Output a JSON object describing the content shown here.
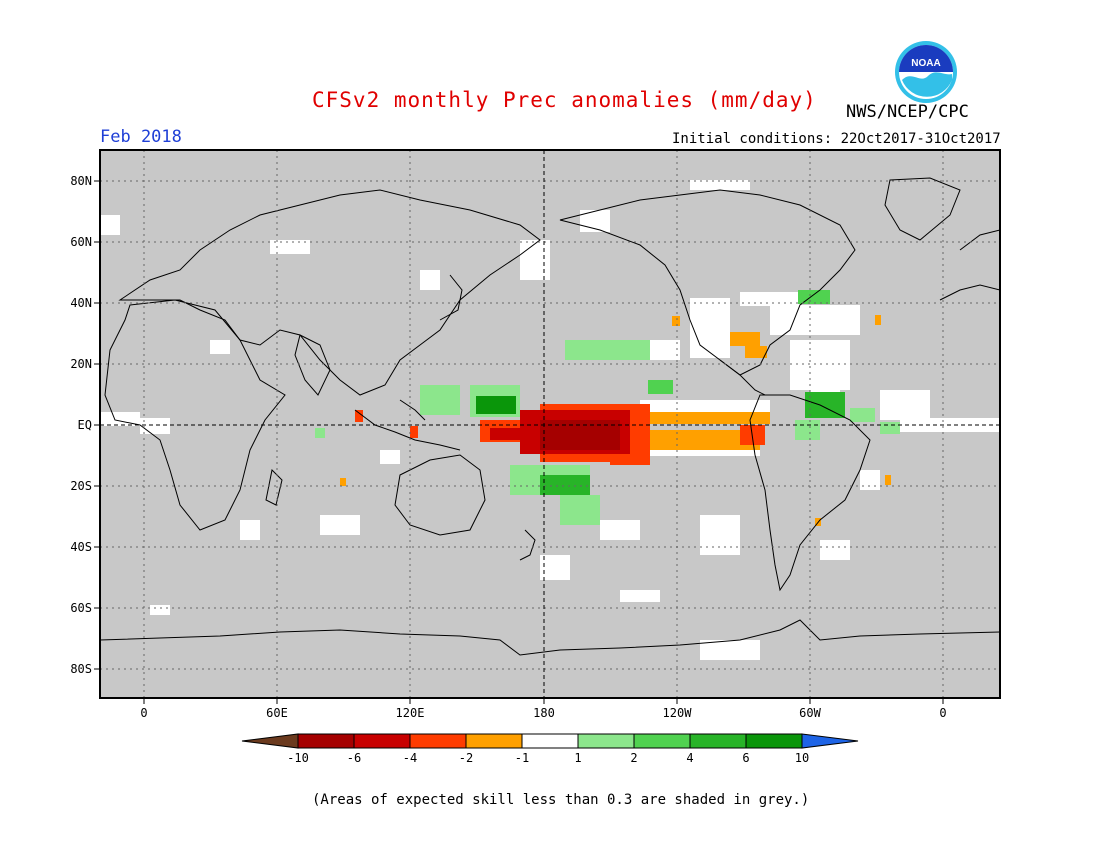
{
  "header": {
    "title": "CFSv2 monthly Prec anomalies (mm/day)",
    "org": "NWS/NCEP/CPC",
    "valid_month": "Feb 2018",
    "initial_conditions": "Initial conditions: 22Oct2017-31Oct2017"
  },
  "logo": {
    "text": "NOAA"
  },
  "map": {
    "lat_labels": [
      "80N",
      "60N",
      "40N",
      "20N",
      "EQ",
      "20S",
      "40S",
      "60S",
      "80S"
    ],
    "lon_labels": [
      "0",
      "60E",
      "120E",
      "180",
      "120W",
      "60W",
      "0"
    ],
    "background_color": "#c8c8c8"
  },
  "colorbar": {
    "labels": [
      "-10",
      "-6",
      "-4",
      "-2",
      "-1",
      "1",
      "2",
      "4",
      "6",
      "10"
    ],
    "colors": [
      "#6b3a1e",
      "#a50000",
      "#c80000",
      "#ff3c00",
      "#ffa000",
      "#ffffff",
      "#8ce68c",
      "#50d250",
      "#28b428",
      "#0a960a",
      "#1e64e6"
    ]
  },
  "footnote": "(Areas of expected skill less than 0.3 are shaded in grey.)"
}
